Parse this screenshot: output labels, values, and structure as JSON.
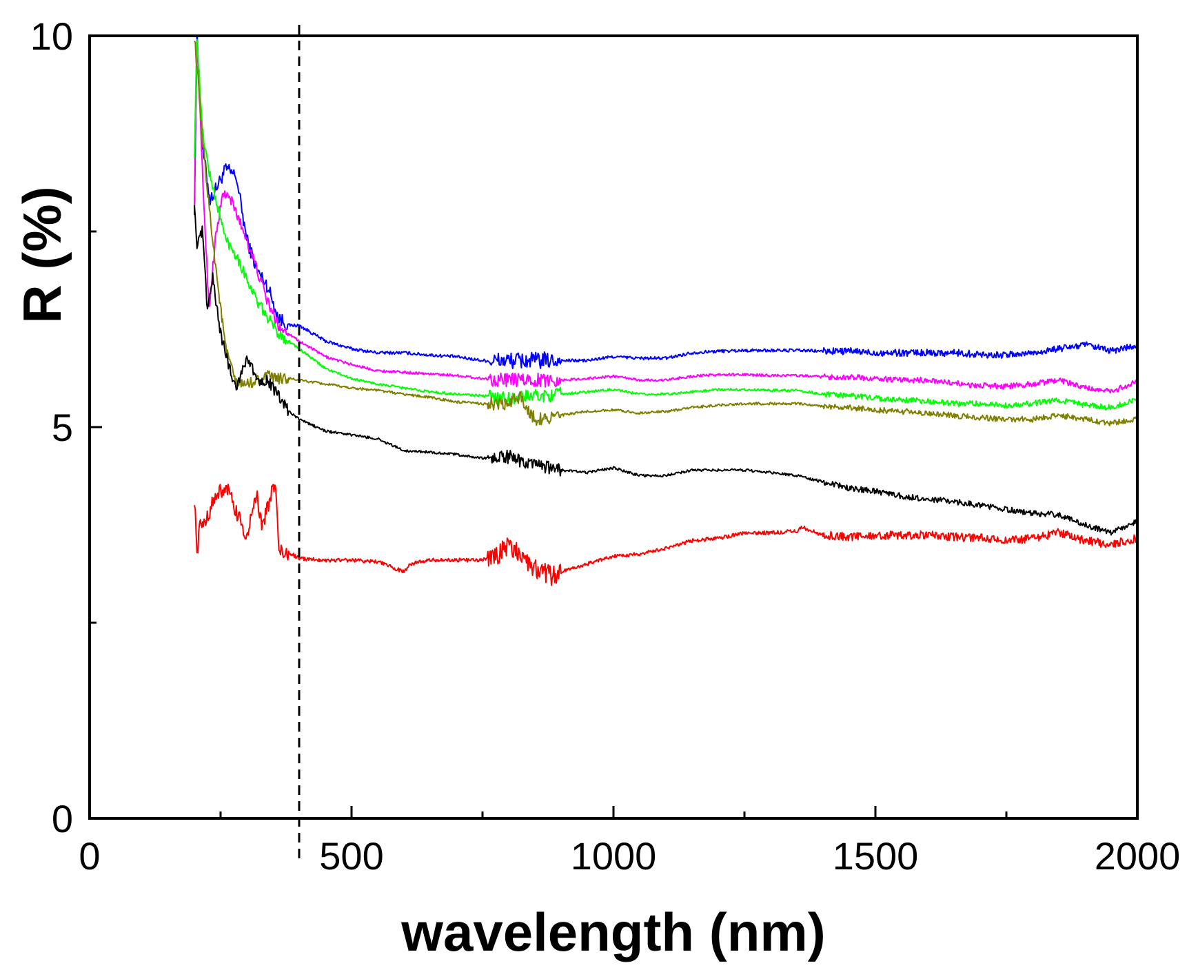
{
  "chart_data": {
    "type": "line",
    "title": "",
    "xlabel": "wavelength (nm)",
    "ylabel": "R (%)",
    "xlim": [
      0,
      2000
    ],
    "ylim": [
      0,
      10
    ],
    "x_major_ticks": [
      0,
      500,
      1000,
      1500,
      2000
    ],
    "x_minor_ticks": [
      250,
      750,
      1250,
      1750
    ],
    "x_tick_labels": [
      "0",
      "500",
      "1000",
      "1500",
      "2000"
    ],
    "y_major_ticks": [
      0,
      5,
      10
    ],
    "y_minor_ticks": [
      2.5,
      7.5
    ],
    "y_tick_labels": [
      "0",
      "5",
      "10"
    ],
    "grid": false,
    "legend": "none",
    "reference_line": {
      "x": 400,
      "style": "dashed",
      "color": "#000000"
    },
    "series": [
      {
        "name": "blue",
        "color": "#0000ff",
        "noise": 0.05,
        "x": [
          200,
          205,
          215,
          230,
          245,
          260,
          280,
          300,
          320,
          340,
          360,
          380,
          400,
          450,
          500,
          550,
          600,
          650,
          700,
          750,
          800,
          850,
          900,
          950,
          1000,
          1050,
          1100,
          1150,
          1200,
          1250,
          1300,
          1350,
          1400,
          1450,
          1500,
          1550,
          1600,
          1650,
          1700,
          1750,
          1800,
          1850,
          1900,
          1950,
          2000
        ],
        "y": [
          7.8,
          10.0,
          8.6,
          7.9,
          8.1,
          8.3,
          8.2,
          7.4,
          7.0,
          6.8,
          6.4,
          6.3,
          6.3,
          6.1,
          6.0,
          5.95,
          5.95,
          5.92,
          5.9,
          5.85,
          5.85,
          5.85,
          5.85,
          5.85,
          5.9,
          5.88,
          5.88,
          5.95,
          5.97,
          5.98,
          5.98,
          5.98,
          5.97,
          5.97,
          5.95,
          5.95,
          5.95,
          5.95,
          5.93,
          5.92,
          5.95,
          6.0,
          6.05,
          5.97,
          6.05
        ]
      },
      {
        "name": "magenta",
        "color": "#ff00ff",
        "noise": 0.04,
        "x": [
          200,
          205,
          215,
          228,
          240,
          255,
          270,
          300,
          320,
          340,
          360,
          380,
          400,
          450,
          500,
          550,
          600,
          650,
          700,
          750,
          800,
          850,
          900,
          950,
          1000,
          1050,
          1100,
          1150,
          1200,
          1250,
          1300,
          1350,
          1400,
          1450,
          1500,
          1550,
          1600,
          1650,
          1700,
          1750,
          1800,
          1850,
          1900,
          1950,
          2000
        ],
        "y": [
          7.9,
          10.0,
          8.3,
          6.5,
          7.4,
          8.0,
          7.9,
          7.4,
          7.0,
          6.6,
          6.3,
          6.2,
          6.1,
          5.9,
          5.8,
          5.72,
          5.7,
          5.68,
          5.66,
          5.62,
          5.6,
          5.6,
          5.6,
          5.62,
          5.65,
          5.6,
          5.6,
          5.65,
          5.67,
          5.67,
          5.66,
          5.66,
          5.64,
          5.64,
          5.62,
          5.6,
          5.6,
          5.56,
          5.53,
          5.52,
          5.55,
          5.6,
          5.5,
          5.45,
          5.58
        ]
      },
      {
        "name": "green",
        "color": "#00ff00",
        "noise": 0.04,
        "x": [
          200,
          205,
          215,
          230,
          245,
          260,
          280,
          300,
          320,
          340,
          360,
          380,
          400,
          450,
          500,
          550,
          600,
          650,
          700,
          750,
          800,
          850,
          900,
          950,
          1000,
          1050,
          1100,
          1150,
          1200,
          1250,
          1300,
          1350,
          1400,
          1450,
          1500,
          1550,
          1600,
          1650,
          1700,
          1750,
          1800,
          1850,
          1900,
          1950,
          2000
        ],
        "y": [
          8.5,
          10.0,
          8.8,
          8.2,
          7.8,
          7.4,
          7.2,
          6.9,
          6.6,
          6.4,
          6.2,
          6.1,
          6.0,
          5.75,
          5.62,
          5.55,
          5.5,
          5.45,
          5.42,
          5.4,
          5.37,
          5.4,
          5.42,
          5.45,
          5.48,
          5.42,
          5.42,
          5.45,
          5.48,
          5.48,
          5.47,
          5.47,
          5.42,
          5.4,
          5.37,
          5.35,
          5.33,
          5.3,
          5.3,
          5.28,
          5.3,
          5.35,
          5.28,
          5.25,
          5.35
        ]
      },
      {
        "name": "olive",
        "color": "#808000",
        "noise": 0.04,
        "x": [
          200,
          205,
          215,
          230,
          245,
          260,
          280,
          300,
          320,
          340,
          360,
          380,
          400,
          450,
          500,
          550,
          600,
          650,
          700,
          750,
          800,
          820,
          850,
          900,
          950,
          1000,
          1050,
          1100,
          1150,
          1200,
          1250,
          1300,
          1350,
          1400,
          1450,
          1500,
          1550,
          1600,
          1650,
          1700,
          1750,
          1800,
          1850,
          1900,
          1950,
          2000
        ],
        "y": [
          10.0,
          9.6,
          8.7,
          7.7,
          6.8,
          6.0,
          5.55,
          5.55,
          5.6,
          5.65,
          5.62,
          5.62,
          5.6,
          5.55,
          5.5,
          5.47,
          5.42,
          5.38,
          5.32,
          5.3,
          5.28,
          5.4,
          5.1,
          5.15,
          5.2,
          5.22,
          5.18,
          5.2,
          5.25,
          5.28,
          5.3,
          5.3,
          5.3,
          5.27,
          5.25,
          5.22,
          5.2,
          5.18,
          5.15,
          5.12,
          5.1,
          5.1,
          5.15,
          5.1,
          5.05,
          5.1
        ]
      },
      {
        "name": "black",
        "color": "#000000",
        "noise": 0.04,
        "x": [
          200,
          205,
          215,
          225,
          235,
          250,
          265,
          280,
          300,
          320,
          340,
          360,
          380,
          400,
          450,
          500,
          550,
          600,
          650,
          700,
          750,
          800,
          850,
          900,
          950,
          1000,
          1050,
          1100,
          1150,
          1200,
          1250,
          1300,
          1350,
          1400,
          1450,
          1500,
          1550,
          1600,
          1650,
          1700,
          1750,
          1800,
          1850,
          1900,
          1950,
          2000
        ],
        "y": [
          7.9,
          7.3,
          7.5,
          6.5,
          6.9,
          6.2,
          5.8,
          5.5,
          5.9,
          5.6,
          5.6,
          5.4,
          5.2,
          5.1,
          4.95,
          4.9,
          4.85,
          4.7,
          4.68,
          4.65,
          4.6,
          4.62,
          4.5,
          4.45,
          4.42,
          4.48,
          4.38,
          4.38,
          4.45,
          4.45,
          4.45,
          4.42,
          4.38,
          4.3,
          4.22,
          4.18,
          4.12,
          4.08,
          4.05,
          4.0,
          3.95,
          3.9,
          3.88,
          3.75,
          3.65,
          3.8
        ]
      },
      {
        "name": "red",
        "color": "#ff0000",
        "noise": 0.06,
        "x": [
          200,
          205,
          210,
          220,
          240,
          260,
          280,
          300,
          310,
          320,
          330,
          340,
          355,
          360,
          370,
          380,
          400,
          450,
          500,
          550,
          600,
          610,
          650,
          700,
          750,
          775,
          800,
          825,
          850,
          880,
          900,
          950,
          1000,
          1050,
          1100,
          1150,
          1200,
          1250,
          1300,
          1350,
          1360,
          1400,
          1450,
          1500,
          1550,
          1600,
          1650,
          1700,
          1750,
          1800,
          1850,
          1900,
          1950,
          2000
        ],
        "y": [
          4.1,
          3.4,
          3.7,
          3.8,
          4.1,
          4.25,
          3.9,
          3.6,
          3.9,
          4.1,
          3.7,
          4.0,
          4.3,
          3.5,
          3.35,
          3.4,
          3.32,
          3.3,
          3.3,
          3.28,
          3.15,
          3.25,
          3.3,
          3.3,
          3.3,
          3.35,
          3.5,
          3.35,
          3.2,
          3.1,
          3.15,
          3.25,
          3.35,
          3.38,
          3.45,
          3.55,
          3.58,
          3.65,
          3.65,
          3.67,
          3.72,
          3.62,
          3.6,
          3.62,
          3.62,
          3.62,
          3.6,
          3.58,
          3.55,
          3.58,
          3.65,
          3.55,
          3.5,
          3.58
        ]
      }
    ]
  }
}
